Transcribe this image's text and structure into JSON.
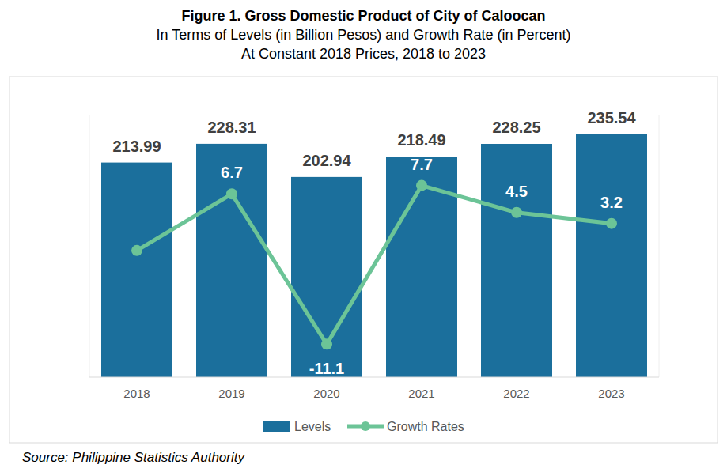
{
  "chart_data": {
    "type": "bar",
    "title": "Figure 1. Gross Domestic Product of City of Caloocan",
    "subtitle": [
      "In Terms of Levels (in Billion Pesos) and Growth Rate (in Percent)",
      "At Constant 2018 Prices, 2018 to 2023"
    ],
    "source": "Source: Philippine Statistics Authority",
    "categories": [
      "2018",
      "2019",
      "2020",
      "2021",
      "2022",
      "2023"
    ],
    "series": [
      {
        "name": "Levels",
        "type": "bar",
        "color": "#1b6f9c",
        "values": [
          213.99,
          228.31,
          202.94,
          218.49,
          228.25,
          235.54
        ]
      },
      {
        "name": "Growth Rates",
        "type": "line",
        "axis": "y2",
        "color": "#6cc497",
        "marker": "circle",
        "values": [
          0,
          6.7,
          -11.1,
          7.7,
          4.5,
          3.2
        ],
        "value_labels": [
          null,
          "6.7",
          "-11.1",
          "7.7",
          "4.5",
          "3.2"
        ]
      }
    ],
    "ylim": [
      50,
      250
    ],
    "y2lim": [
      -15,
      16
    ],
    "data_labels": true,
    "tick_labels": "x",
    "legend": "bottom",
    "grid": false
  }
}
